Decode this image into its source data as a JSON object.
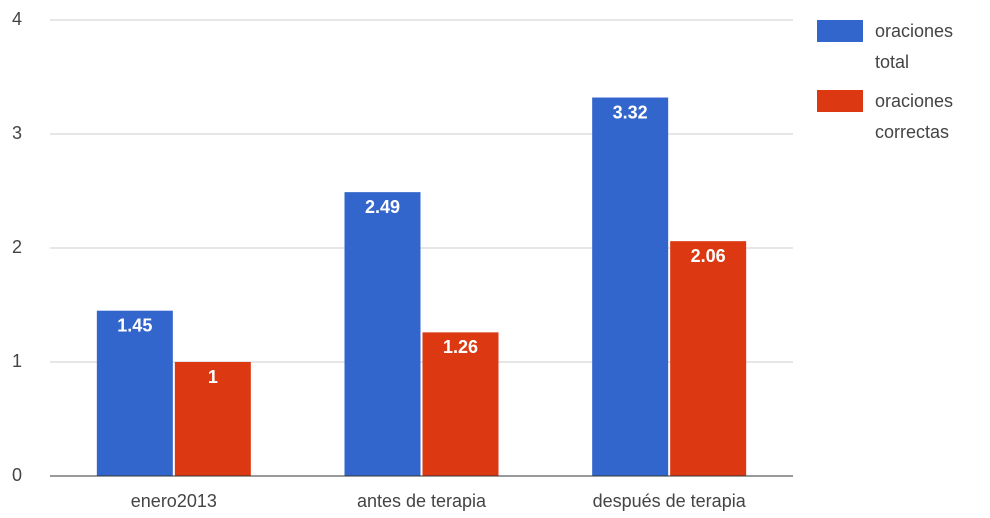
{
  "chart_data": {
    "type": "bar",
    "categories": [
      "enero2013",
      "antes de terapia",
      "después de terapia"
    ],
    "series": [
      {
        "name": "oraciones total",
        "color": "#3366cc",
        "values": [
          1.45,
          2.49,
          3.32
        ]
      },
      {
        "name": "oraciones correctas",
        "color": "#dc3912",
        "values": [
          1,
          1.26,
          2.06
        ]
      }
    ],
    "ylim": [
      0,
      4
    ],
    "yticks": [
      0,
      1,
      2,
      3,
      4
    ],
    "grid": true,
    "legend": "right"
  }
}
